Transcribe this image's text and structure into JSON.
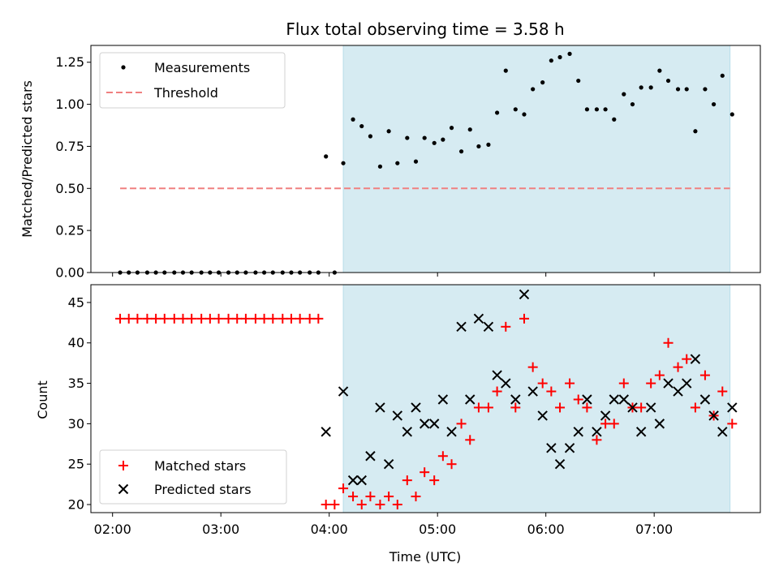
{
  "chart_data": [
    {
      "type": "scatter",
      "title": "Flux total observing time = 3.58 h",
      "xlabel": "",
      "ylabel": "Matched/Predicted stars",
      "ylim": [
        0,
        1.35
      ],
      "yticks": [
        "0.00",
        "0.25",
        "0.50",
        "0.75",
        "1.00",
        "1.25"
      ],
      "ytick_values": [
        0,
        0.25,
        0.5,
        0.75,
        1.0,
        1.25
      ],
      "legend_position": "top-left",
      "threshold": {
        "name": "Threshold",
        "value": 0.5,
        "x_start": 2.07,
        "x_end": 7.7,
        "color": "#f08080"
      },
      "shaded_interval": {
        "start": 4.13,
        "end": 7.7,
        "color": "#add8e6"
      },
      "series": [
        {
          "name": "Measurements",
          "color": "#000000",
          "x": [
            2.07,
            2.15,
            2.23,
            2.32,
            2.4,
            2.48,
            2.57,
            2.65,
            2.73,
            2.82,
            2.9,
            2.98,
            3.07,
            3.15,
            3.23,
            3.32,
            3.4,
            3.48,
            3.57,
            3.65,
            3.73,
            3.82,
            3.9,
            3.97,
            4.05,
            4.13,
            4.22,
            4.3,
            4.38,
            4.47,
            4.55,
            4.63,
            4.72,
            4.8,
            4.88,
            4.97,
            5.05,
            5.13,
            5.22,
            5.3,
            5.38,
            5.47,
            5.55,
            5.63,
            5.72,
            5.8,
            5.88,
            5.97,
            6.05,
            6.13,
            6.22,
            6.3,
            6.38,
            6.47,
            6.55,
            6.63,
            6.72,
            6.8,
            6.88,
            6.97,
            7.05,
            7.13,
            7.22,
            7.3,
            7.38,
            7.47,
            7.55,
            7.63,
            7.72
          ],
          "y": [
            0,
            0,
            0,
            0,
            0,
            0,
            0,
            0,
            0,
            0,
            0,
            0,
            0,
            0,
            0,
            0,
            0,
            0,
            0,
            0,
            0,
            0,
            0,
            0.69,
            0,
            0.65,
            0.91,
            0.87,
            0.81,
            0.63,
            0.84,
            0.65,
            0.8,
            0.66,
            0.8,
            0.77,
            0.79,
            0.86,
            0.72,
            0.85,
            0.75,
            0.76,
            0.95,
            1.2,
            0.97,
            0.94,
            1.09,
            1.13,
            1.26,
            1.28,
            1.3,
            1.14,
            0.97,
            0.97,
            0.97,
            0.91,
            1.06,
            1.0,
            1.1,
            1.1,
            1.2,
            1.14,
            1.09,
            1.09,
            0.84,
            1.09,
            1.0,
            1.17,
            0.94
          ]
        }
      ]
    },
    {
      "type": "scatter",
      "title": "",
      "xlabel": "Time (UTC)",
      "ylabel": "Count",
      "xlim": [
        1.8,
        7.98
      ],
      "ylim": [
        19,
        47.2
      ],
      "xticks": [
        "02:00",
        "03:00",
        "04:00",
        "05:00",
        "06:00",
        "07:00"
      ],
      "xtick_values": [
        2,
        3,
        4,
        5,
        6,
        7
      ],
      "yticks": [
        "20",
        "25",
        "30",
        "35",
        "40",
        "45"
      ],
      "ytick_values": [
        20,
        25,
        30,
        35,
        40,
        45
      ],
      "legend_position": "bottom-left",
      "shaded_interval": {
        "start": 4.13,
        "end": 7.7,
        "color": "#add8e6"
      },
      "series": [
        {
          "name": "Matched stars",
          "color": "#ff0000",
          "marker": "plus",
          "x": [
            2.07,
            2.15,
            2.23,
            2.32,
            2.4,
            2.48,
            2.57,
            2.65,
            2.73,
            2.82,
            2.9,
            2.98,
            3.07,
            3.15,
            3.23,
            3.32,
            3.4,
            3.48,
            3.57,
            3.65,
            3.73,
            3.82,
            3.9,
            3.97,
            4.05,
            4.13,
            4.22,
            4.3,
            4.38,
            4.47,
            4.55,
            4.63,
            4.72,
            4.8,
            4.88,
            4.97,
            5.05,
            5.13,
            5.22,
            5.3,
            5.38,
            5.47,
            5.55,
            5.63,
            5.72,
            5.8,
            5.88,
            5.97,
            6.05,
            6.13,
            6.22,
            6.3,
            6.38,
            6.47,
            6.55,
            6.63,
            6.72,
            6.8,
            6.88,
            6.97,
            7.05,
            7.13,
            7.22,
            7.3,
            7.38,
            7.47,
            7.55,
            7.63,
            7.72
          ],
          "y": [
            43,
            43,
            43,
            43,
            43,
            43,
            43,
            43,
            43,
            43,
            43,
            43,
            43,
            43,
            43,
            43,
            43,
            43,
            43,
            43,
            43,
            43,
            43,
            20,
            20,
            22,
            21,
            20,
            21,
            20,
            21,
            20,
            23,
            21,
            24,
            23,
            26,
            25,
            30,
            28,
            32,
            32,
            34,
            42,
            32,
            43,
            37,
            35,
            34,
            32,
            35,
            33,
            32,
            28,
            30,
            30,
            35,
            32,
            32,
            35,
            36,
            40,
            37,
            38,
            32,
            36,
            31,
            34,
            30
          ]
        },
        {
          "name": "Predicted stars",
          "color": "#000000",
          "marker": "x",
          "x": [
            3.97,
            4.13,
            4.22,
            4.3,
            4.38,
            4.47,
            4.55,
            4.63,
            4.72,
            4.8,
            4.88,
            4.97,
            5.05,
            5.13,
            5.22,
            5.3,
            5.38,
            5.47,
            5.55,
            5.63,
            5.72,
            5.8,
            5.88,
            5.97,
            6.05,
            6.13,
            6.22,
            6.3,
            6.38,
            6.47,
            6.55,
            6.63,
            6.72,
            6.8,
            6.88,
            6.97,
            7.05,
            7.13,
            7.22,
            7.3,
            7.38,
            7.47,
            7.55,
            7.63,
            7.72
          ],
          "y": [
            29,
            34,
            23,
            23,
            26,
            32,
            25,
            31,
            29,
            32,
            30,
            30,
            33,
            29,
            42,
            33,
            43,
            42,
            36,
            35,
            33,
            46,
            34,
            31,
            27,
            25,
            27,
            29,
            33,
            29,
            31,
            33,
            33,
            32,
            29,
            32,
            30,
            35,
            34,
            35,
            38,
            33,
            31,
            29,
            32
          ]
        }
      ]
    }
  ]
}
